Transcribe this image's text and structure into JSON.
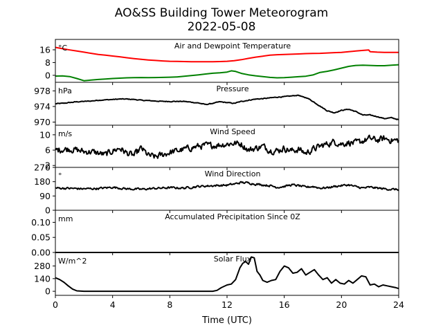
{
  "chart_data": {
    "type": "line",
    "title": "AO&SS Building Tower Meteorogram",
    "subtitle": "2022-05-08",
    "xlabel": "Time (UTC)",
    "xlim": [
      0,
      24
    ],
    "xticks": [
      0,
      4,
      8,
      12,
      16,
      20,
      24
    ],
    "panels": [
      {
        "title": "Air and Dewpoint Temperature",
        "unit": "°C",
        "ylim": [
          -4.4,
          22.5
        ],
        "yticks": [
          0,
          8,
          16
        ],
        "series": [
          {
            "color": "#ff0000",
            "x": [
              0,
              0.5,
              1,
              1.5,
              2,
              2.5,
              3,
              3.5,
              4,
              4.5,
              5,
              5.5,
              6,
              6.5,
              7,
              7.5,
              8,
              8.5,
              9,
              9.5,
              10,
              10.5,
              11,
              11.5,
              12,
              12.5,
              13,
              13.5,
              14,
              14.5,
              15,
              15.5,
              16,
              16.5,
              17,
              17.5,
              18,
              18.5,
              19,
              19.5,
              20,
              20.5,
              21,
              21.5,
              21.9,
              22,
              22.5,
              23,
              23.5,
              24
            ],
            "y": [
              17.5,
              16.7,
              15.9,
              15.2,
              14.5,
              13.8,
              13.1,
              12.6,
              12.1,
              11.6,
              11.0,
              10.5,
              10.0,
              9.6,
              9.3,
              9.0,
              8.8,
              8.7,
              8.6,
              8.5,
              8.5,
              8.5,
              8.5,
              8.6,
              8.8,
              9.2,
              9.8,
              10.6,
              11.4,
              12.0,
              12.6,
              12.9,
              13.1,
              13.2,
              13.4,
              13.6,
              13.7,
              13.8,
              14.0,
              14.2,
              14.4,
              14.8,
              15.2,
              15.6,
              15.9,
              14.8,
              14.5,
              14.4,
              14.4,
              14.4
            ]
          },
          {
            "color": "#008000",
            "x": [
              0,
              0.5,
              1,
              1.5,
              2,
              2.5,
              3,
              3.5,
              4,
              4.5,
              5,
              5.5,
              6,
              6.5,
              7,
              7.5,
              8,
              8.5,
              9,
              9.5,
              10,
              10.5,
              11,
              11.5,
              12,
              12.3,
              12.6,
              13,
              13.5,
              14,
              14.5,
              15,
              15.5,
              16,
              16.5,
              17,
              17.5,
              18,
              18.5,
              19,
              19.5,
              20,
              20.5,
              21,
              21.5,
              22,
              22.5,
              23,
              23.5,
              24
            ],
            "y": [
              -0.5,
              -0.4,
              -0.8,
              -2.0,
              -3.4,
              -3.0,
              -2.6,
              -2.3,
              -2.0,
              -1.8,
              -1.6,
              -1.5,
              -1.4,
              -1.5,
              -1.4,
              -1.3,
              -1.2,
              -1.0,
              -0.6,
              -0.2,
              0.3,
              0.8,
              1.3,
              1.6,
              2.0,
              2.8,
              2.4,
              1.2,
              0.3,
              -0.3,
              -0.8,
              -1.3,
              -1.6,
              -1.5,
              -1.2,
              -0.9,
              -0.6,
              0.2,
              1.8,
              2.5,
              3.4,
              4.5,
              5.6,
              6.2,
              6.3,
              6.2,
              6.0,
              6.0,
              6.3,
              6.6
            ]
          }
        ]
      },
      {
        "title": "Pressure",
        "unit": "hPa",
        "ylim": [
          969.2,
          980.2
        ],
        "yticks": [
          970,
          974,
          978
        ],
        "series": [
          {
            "color": "#000000",
            "noise": 0.15,
            "x": [
              0,
              0.5,
              1,
              1.5,
              2,
              2.5,
              3,
              3.5,
              4,
              4.5,
              5,
              5.5,
              6,
              6.5,
              7,
              7.5,
              8,
              8.5,
              9,
              9.5,
              10,
              10.5,
              11,
              11.5,
              12,
              12.5,
              13,
              13.5,
              14,
              14.5,
              15,
              15.5,
              16,
              16.5,
              17,
              17.3,
              17.6,
              18,
              18.5,
              19,
              19.5,
              20,
              20.5,
              21,
              21.5,
              22,
              22.5,
              23,
              23.5,
              24
            ],
            "y": [
              974.7,
              974.8,
              975.0,
              975.2,
              975.3,
              975.4,
              975.6,
              975.7,
              975.8,
              975.9,
              975.9,
              975.8,
              975.6,
              975.5,
              975.4,
              975.3,
              975.3,
              975.3,
              975.3,
              975.1,
              974.9,
              974.5,
              974.8,
              975.2,
              975.0,
              974.8,
              975.3,
              975.6,
              975.9,
              976.0,
              976.2,
              976.4,
              976.5,
              976.7,
              976.9,
              976.4,
              976.2,
              975.3,
              974.1,
              972.9,
              972.4,
              973.0,
              973.3,
              972.7,
              971.8,
              971.8,
              971.4,
              970.9,
              971.1,
              970.6
            ]
          }
        ]
      },
      {
        "title": "Wind Speed",
        "unit": "m/s",
        "ylim": [
          1.5,
          12.5
        ],
        "yticks": [
          2,
          6,
          10
        ],
        "series": [
          {
            "color": "#000000",
            "noise": 1.3,
            "x": [
              0,
              0.5,
              1,
              1.5,
              2,
              2.5,
              3,
              3.5,
              4,
              4.5,
              5,
              5.5,
              6,
              6.5,
              7,
              7.5,
              8,
              8.5,
              9,
              9.5,
              10,
              10.5,
              11,
              11.5,
              12,
              12.5,
              13,
              13.5,
              14,
              14.5,
              15,
              15.5,
              16,
              16.5,
              17,
              17.5,
              18,
              18.5,
              19,
              19.5,
              20,
              20.5,
              21,
              21.5,
              22,
              22.5,
              23,
              23.5,
              24
            ],
            "y": [
              6.0,
              6.2,
              6.3,
              6.0,
              5.6,
              5.6,
              5.2,
              4.8,
              5.8,
              6.5,
              5.2,
              4.6,
              6.5,
              4.6,
              4.2,
              4.8,
              5.4,
              5.8,
              6.2,
              6.6,
              7.0,
              7.2,
              7.2,
              7.4,
              7.6,
              7.8,
              7.6,
              6.0,
              6.5,
              7.0,
              6.0,
              5.8,
              6.5,
              5.8,
              6.2,
              5.2,
              6.2,
              7.0,
              7.6,
              8.2,
              7.6,
              8.0,
              7.8,
              8.4,
              9.0,
              8.6,
              9.0,
              8.6,
              8.5
            ]
          }
        ]
      },
      {
        "title": "Wind Direction",
        "unit": "°",
        "ylim": [
          0,
          270
        ],
        "yticks": [
          0,
          90,
          180,
          270
        ],
        "series": [
          {
            "color": "#000000",
            "noise": 10,
            "x": [
              0,
              1,
              2,
              3,
              4,
              5,
              6,
              7,
              8,
              9,
              10,
              11,
              12,
              12.5,
              13,
              13.5,
              14,
              14.5,
              15,
              15.5,
              16,
              16.5,
              17,
              17.5,
              18,
              18.5,
              19,
              19.5,
              20,
              20.5,
              21,
              21.5,
              22,
              22.5,
              23,
              23.5,
              24
            ],
            "y": [
              140,
              138,
              135,
              137,
              145,
              135,
              132,
              138,
              142,
              140,
              150,
              155,
              158,
              165,
              175,
              172,
              165,
              160,
              155,
              145,
              150,
              160,
              155,
              145,
              150,
              140,
              142,
              150,
              155,
              160,
              148,
              140,
              145,
              140,
              135,
              132,
              130
            ]
          }
        ]
      },
      {
        "title": "Accumulated Precipitation Since 0Z",
        "unit": "mm",
        "ylim": [
          0,
          0.14
        ],
        "yticks": [
          0.0,
          0.05,
          0.1
        ],
        "ytick_labels": [
          "0.00",
          "0.05",
          "0.10"
        ],
        "series": [
          {
            "color": "#000000",
            "x": [
              0,
              24
            ],
            "y": [
              0,
              0
            ]
          }
        ]
      },
      {
        "title": "Solar Flux",
        "unit": "W/m^2",
        "ylim": [
          -45,
          430
        ],
        "yticks": [
          0,
          140,
          280
        ],
        "series": [
          {
            "color": "#000000",
            "x": [
              0,
              0.3,
              0.6,
              0.9,
              1.2,
              1.5,
              2,
              4,
              6,
              8,
              10,
              11,
              11.3,
              11.6,
              12,
              12.3,
              12.6,
              12.9,
              13.1,
              13.3,
              13.5,
              13.7,
              13.9,
              14.1,
              14.3,
              14.5,
              14.8,
              15.1,
              15.4,
              15.7,
              16,
              16.3,
              16.6,
              16.9,
              17.2,
              17.5,
              17.8,
              18.1,
              18.4,
              18.7,
              19,
              19.3,
              19.6,
              19.9,
              20.2,
              20.5,
              20.8,
              21.1,
              21.4,
              21.7,
              22,
              22.3,
              22.6,
              22.9,
              23.2,
              23.5,
              23.8,
              24
            ],
            "y": [
              150,
              130,
              100,
              60,
              25,
              5,
              0,
              0,
              0,
              0,
              0,
              0,
              10,
              40,
              70,
              80,
              130,
              260,
              310,
              330,
              300,
              380,
              370,
              220,
              180,
              120,
              100,
              120,
              130,
              220,
              280,
              260,
              200,
              210,
              250,
              180,
              210,
              240,
              180,
              130,
              150,
              90,
              130,
              90,
              80,
              120,
              90,
              130,
              170,
              160,
              70,
              80,
              50,
              70,
              60,
              50,
              40,
              30
            ]
          }
        ]
      }
    ]
  }
}
